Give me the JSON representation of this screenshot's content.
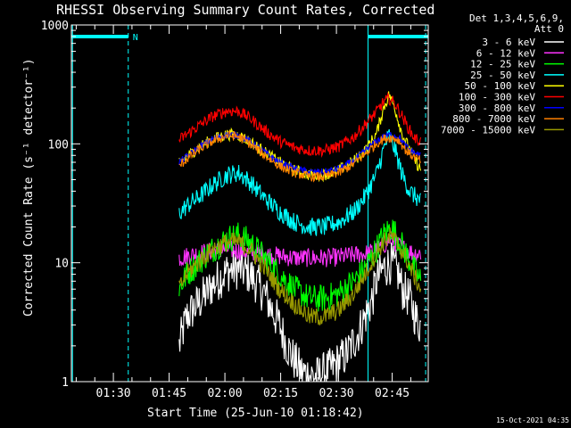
{
  "chart_data": {
    "type": "line",
    "title": "RHESSI Observing Summary Count Rates, Corrected",
    "xlabel": "Start Time (25-Jun-10 01:18:42)",
    "ylabel": "Corrected Count Rate (s⁻¹ detector⁻¹)",
    "yscale": "log",
    "ylim": [
      1,
      1000
    ],
    "xlim": [
      "01:18:42",
      "02:54:42"
    ],
    "x_ticks": [
      "01:30",
      "01:45",
      "02:00",
      "02:15",
      "02:30",
      "02:45"
    ],
    "y_ticks": [
      "1",
      "10",
      "100",
      "1000"
    ],
    "legend_header": [
      "Det 1,3,4,5,6,9,",
      "Att 0"
    ],
    "legend_position": "right",
    "annotations": [
      {
        "text": "N",
        "color": "#00ffff"
      }
    ],
    "night_bars": [
      {
        "from": "01:18:42",
        "to": "01:34:00"
      },
      {
        "from": "02:38:30",
        "to": "02:54:42"
      }
    ],
    "vertical_markers": [
      {
        "time": "01:19:00",
        "style": "solid"
      },
      {
        "time": "01:34:00",
        "style": "dashed"
      },
      {
        "time": "02:38:30",
        "style": "solid"
      },
      {
        "time": "02:54:00",
        "style": "dashed"
      }
    ],
    "x_unit": "minutes",
    "series": [
      {
        "name": "3 - 6 keV",
        "color": "#ffffff",
        "noise": 0.18,
        "x": [
          29,
          31,
          34,
          38,
          42,
          45,
          48,
          52,
          54,
          56,
          58,
          60,
          62,
          66,
          70,
          74,
          77,
          79,
          81,
          82,
          84,
          86,
          88,
          89,
          91,
          92,
          93,
          94
        ],
        "values": [
          2,
          3.5,
          4.5,
          6.5,
          8.5,
          9,
          8,
          5.5,
          4,
          3,
          2,
          1.5,
          1.2,
          1.1,
          1.3,
          1.7,
          2.5,
          3.5,
          5,
          7,
          9,
          10,
          8,
          6,
          5,
          4,
          3.2,
          3
        ]
      },
      {
        "name": "6 - 12 keV",
        "color": "#ff33ff",
        "noise": 0.08,
        "x": [
          29,
          34,
          38,
          42,
          46,
          50,
          55,
          60,
          65,
          70,
          75,
          80,
          84,
          86,
          88,
          90,
          92,
          94
        ],
        "values": [
          11,
          12,
          12.5,
          13,
          12.5,
          12,
          11.5,
          11,
          11,
          11,
          11.5,
          12,
          14,
          16,
          14,
          13,
          12,
          12
        ]
      },
      {
        "name": "12 - 25 keV",
        "color": "#00ff00",
        "noise": 0.12,
        "x": [
          29,
          31,
          34,
          38,
          42,
          45,
          48,
          52,
          56,
          60,
          64,
          68,
          72,
          76,
          79,
          82,
          84,
          86,
          88,
          90,
          92,
          94
        ],
        "values": [
          6,
          8,
          10,
          13,
          16,
          17,
          15,
          11,
          8,
          6,
          5,
          5,
          5.5,
          7,
          9,
          13,
          17,
          20,
          16,
          12,
          9,
          7
        ]
      },
      {
        "name": "25 - 50 keV",
        "color": "#00ffff",
        "noise": 0.08,
        "x": [
          29,
          31,
          34,
          38,
          42,
          45,
          48,
          52,
          56,
          60,
          64,
          68,
          72,
          76,
          79,
          82,
          84,
          85.5,
          87,
          89,
          91,
          92.5,
          94
        ],
        "values": [
          26,
          30,
          35,
          45,
          55,
          57,
          48,
          35,
          27,
          22,
          20,
          20,
          22,
          27,
          36,
          55,
          90,
          120,
          90,
          55,
          40,
          36,
          33
        ]
      },
      {
        "name": "50 - 100 keV",
        "color": "#ffff00",
        "noise": 0.05,
        "x": [
          29,
          31,
          34,
          38,
          42,
          45,
          48,
          52,
          56,
          60,
          64,
          68,
          72,
          76,
          79,
          82,
          84,
          85.5,
          87,
          89,
          91,
          92.5,
          94
        ],
        "values": [
          68,
          78,
          92,
          110,
          120,
          118,
          105,
          85,
          70,
          60,
          55,
          55,
          60,
          72,
          88,
          120,
          200,
          260,
          200,
          120,
          90,
          72,
          60
        ]
      },
      {
        "name": "100 - 300 keV",
        "color": "#ff0000",
        "noise": 0.05,
        "x": [
          29,
          31,
          34,
          38,
          42,
          45,
          48,
          52,
          56,
          60,
          64,
          68,
          72,
          76,
          79,
          82,
          84,
          85.5,
          87,
          89,
          91,
          92.5,
          94
        ],
        "values": [
          108,
          120,
          140,
          170,
          190,
          188,
          165,
          130,
          105,
          93,
          88,
          88,
          95,
          115,
          145,
          185,
          225,
          240,
          220,
          170,
          130,
          110,
          105
        ]
      },
      {
        "name": "300 - 800 keV",
        "color": "#0000ff",
        "noise": 0.03,
        "x": [
          29,
          31,
          34,
          38,
          42,
          45,
          48,
          52,
          56,
          60,
          64,
          68,
          72,
          76,
          79,
          82,
          84,
          86,
          88,
          90,
          92,
          94
        ],
        "values": [
          70,
          78,
          92,
          110,
          120,
          118,
          105,
          85,
          70,
          62,
          58,
          58,
          62,
          72,
          88,
          105,
          115,
          120,
          115,
          95,
          85,
          80
        ]
      },
      {
        "name": "800 - 7000 keV",
        "color": "#ff8000",
        "noise": 0.04,
        "x": [
          29,
          31,
          34,
          38,
          42,
          45,
          48,
          52,
          56,
          60,
          64,
          68,
          72,
          76,
          79,
          82,
          84,
          86,
          88,
          90,
          92,
          94
        ],
        "values": [
          65,
          74,
          88,
          105,
          118,
          115,
          100,
          80,
          65,
          57,
          53,
          53,
          57,
          68,
          82,
          100,
          110,
          113,
          108,
          88,
          78,
          72
        ]
      },
      {
        "name": "7000 - 15000 keV",
        "color": "#999900",
        "noise": 0.08,
        "x": [
          29,
          31,
          34,
          38,
          42,
          45,
          48,
          52,
          56,
          60,
          64,
          68,
          72,
          76,
          79,
          82,
          84,
          86,
          88,
          90,
          92,
          94
        ],
        "values": [
          6,
          8,
          10,
          13,
          15,
          15,
          13,
          9,
          6,
          4.5,
          3.5,
          3.5,
          4,
          5.5,
          8,
          12,
          15,
          17,
          14,
          11,
          8,
          6
        ]
      }
    ]
  },
  "footer": {
    "timestamp": "15-Oct-2021 04:35"
  }
}
